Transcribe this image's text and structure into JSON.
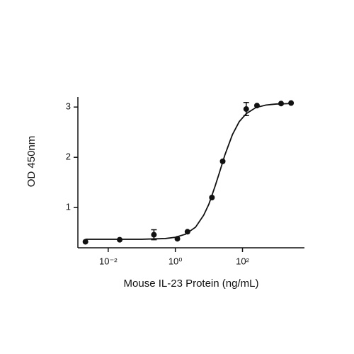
{
  "chart_data": {
    "type": "scatter",
    "x_label": "Mouse IL-23 Protein (ng/mL)",
    "y_label": "OD 450nm",
    "log_x": true,
    "xlim": [
      0.00125,
      7000
    ],
    "ylim": [
      0.2,
      3.2
    ],
    "xticks": [
      {
        "value": 0.01,
        "label": "10⁻²"
      },
      {
        "value": 1,
        "label": "10⁰"
      },
      {
        "value": 100,
        "label": "10²"
      }
    ],
    "yticks": [
      1,
      2,
      3
    ],
    "color": "#111111",
    "x": [
      0.0021,
      0.022,
      0.23,
      1.15,
      2.3,
      12.3,
      25.7,
      129,
      270,
      1410,
      2800
    ],
    "values": [
      0.32,
      0.36,
      0.46,
      0.38,
      0.52,
      1.2,
      1.92,
      2.96,
      3.03,
      3.07,
      3.08
    ],
    "error": [
      null,
      null,
      0.1,
      null,
      null,
      null,
      null,
      0.13,
      null,
      null,
      null
    ],
    "fit": {
      "x": [
        0.0021,
        0.01,
        0.1,
        0.5,
        1,
        2,
        4,
        7,
        10,
        15,
        20,
        30,
        50,
        80,
        130,
        250,
        500,
        1000,
        2800
      ],
      "values": [
        0.37,
        0.37,
        0.37,
        0.384,
        0.41,
        0.47,
        0.61,
        0.85,
        1.07,
        1.41,
        1.67,
        2.05,
        2.45,
        2.71,
        2.87,
        2.99,
        3.04,
        3.06,
        3.07
      ]
    }
  }
}
